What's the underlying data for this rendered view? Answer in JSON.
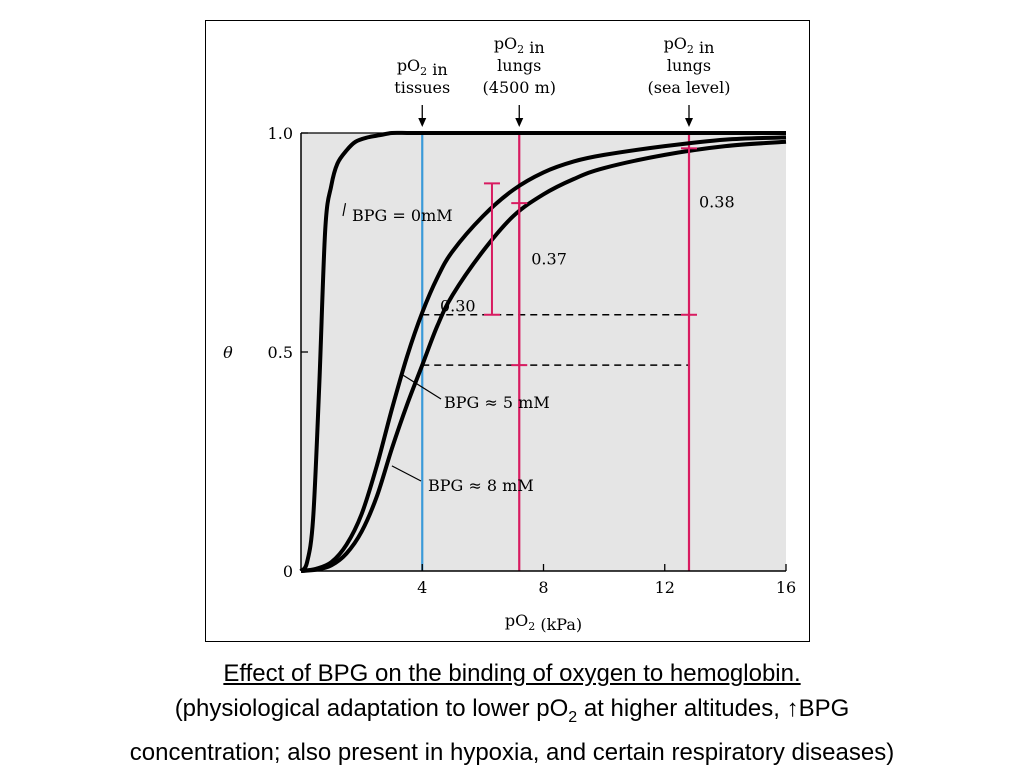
{
  "chart_data": {
    "type": "line",
    "title": "",
    "xlabel": "pO₂ (kPa)",
    "ylabel": "θ",
    "xlim": [
      0,
      16
    ],
    "ylim": [
      0,
      1
    ],
    "xticks": [
      4,
      8,
      12,
      16
    ],
    "yticks": [
      {
        "value": 0,
        "label": "0"
      },
      {
        "value": 0.5,
        "label": "0.5"
      },
      {
        "value": 1.0,
        "label": "1.0"
      }
    ],
    "grid": false,
    "background": "#e5e5e5",
    "series": [
      {
        "name": "BPG = 0mM",
        "label": "BPG = 0mM",
        "x": [
          0,
          0.2,
          0.4,
          0.6,
          0.8,
          1.0,
          1.2,
          1.5,
          1.8,
          2.2,
          2.6,
          3.0,
          3.5,
          4.0,
          6,
          8,
          12,
          16
        ],
        "y": [
          0,
          0.02,
          0.12,
          0.42,
          0.78,
          0.88,
          0.93,
          0.96,
          0.98,
          0.99,
          0.995,
          1.0,
          1.0,
          1.0,
          1.0,
          1.0,
          1.0,
          1.0
        ]
      },
      {
        "name": "BPG ≈ 5 mM",
        "label": "BPG ≈ 5 mM",
        "x": [
          0,
          0.5,
          1,
          1.5,
          2,
          2.5,
          3,
          3.5,
          4,
          4.5,
          5,
          6,
          7,
          8,
          9,
          10,
          12,
          14,
          16
        ],
        "y": [
          0,
          0.005,
          0.02,
          0.06,
          0.13,
          0.24,
          0.37,
          0.49,
          0.59,
          0.67,
          0.73,
          0.81,
          0.87,
          0.91,
          0.935,
          0.95,
          0.97,
          0.985,
          0.99
        ]
      },
      {
        "name": "BPG ≈ 8 mM",
        "label": "BPG ≈ 8 mM",
        "x": [
          0,
          0.5,
          1,
          1.5,
          2,
          2.5,
          3,
          3.5,
          4,
          4.5,
          5,
          6,
          7,
          8,
          9,
          10,
          12,
          14,
          16
        ],
        "y": [
          0,
          0.003,
          0.013,
          0.04,
          0.09,
          0.17,
          0.28,
          0.38,
          0.47,
          0.56,
          0.63,
          0.73,
          0.81,
          0.86,
          0.895,
          0.92,
          0.95,
          0.97,
          0.98
        ]
      }
    ],
    "reference_lines": [
      {
        "x": 4.0,
        "color": "#3a9ad9",
        "label": "pO₂ in tissues"
      },
      {
        "x": 7.2,
        "color": "#d81b60",
        "label": "pO₂ in lungs (4500 m)"
      },
      {
        "x": 12.8,
        "color": "#d81b60",
        "label": "pO₂ in lungs (sea level)"
      }
    ],
    "dashed_levels": [
      0.585,
      0.47
    ],
    "top_labels": [
      {
        "x": 4.0,
        "lines": [
          "pO₂ in",
          "tissues"
        ]
      },
      {
        "x": 7.2,
        "lines": [
          "pO₂ in",
          "lungs",
          "(4500 m)"
        ]
      },
      {
        "x": 12.8,
        "lines": [
          "pO₂ in",
          "lungs",
          "(sea level)"
        ]
      }
    ],
    "annotations": [
      {
        "text": "0.30",
        "x": 6.3,
        "y0": 0.585,
        "y1": 0.885,
        "color": "#d81b60"
      },
      {
        "text": "0.37",
        "x": 7.2,
        "y0": 0.47,
        "y1": 0.84,
        "color": "#d81b60"
      },
      {
        "text": "0.38",
        "x": 12.8,
        "y0": 0.585,
        "y1": 0.965,
        "color": "#d81b60"
      }
    ],
    "accent_color": "#d81b60",
    "tissue_color": "#3a9ad9",
    "curve_color": "#000000"
  },
  "caption": {
    "title": "Effect of BPG on the binding of oxygen to hemoglobin.",
    "line2_pre": "(physiological adaptation to lower pO",
    "line2_sub": "2",
    "line2_post": " at higher altitudes, ↑BPG",
    "line3": "concentration; also present in hypoxia, and certain respiratory diseases)"
  }
}
